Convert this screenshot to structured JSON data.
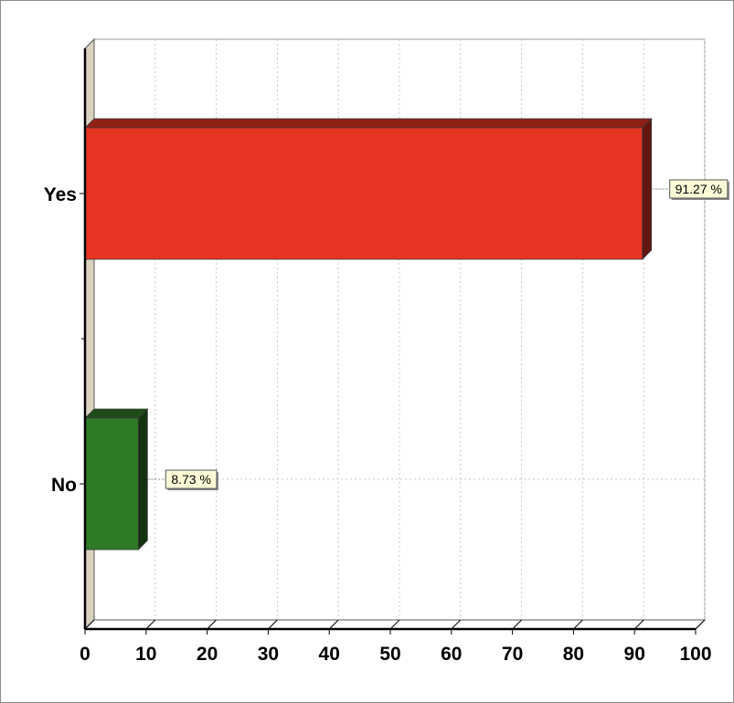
{
  "chart_data": {
    "type": "bar",
    "orientation": "horizontal",
    "style": "3d",
    "categories": [
      "Yes",
      "No"
    ],
    "series": [
      {
        "values": [
          91.27,
          8.73
        ]
      }
    ],
    "data_labels": [
      "91.27 %",
      "8.73 %"
    ],
    "bar_colors": [
      "#e83423",
      "#2f7a25"
    ],
    "xlim": [
      0,
      100
    ],
    "x_ticks": [
      0,
      10,
      20,
      30,
      40,
      50,
      60,
      70,
      80,
      90,
      100
    ],
    "grid": true,
    "legend": "none"
  }
}
